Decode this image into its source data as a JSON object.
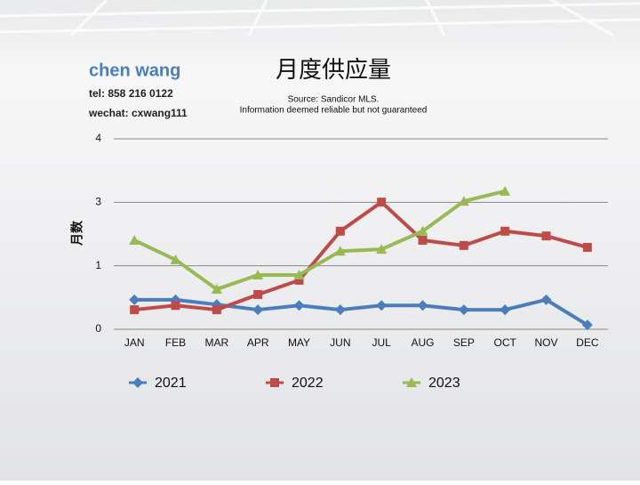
{
  "header": {
    "name": "chen wang",
    "tel": "tel: 858 216 0122",
    "wechat": "wechat: cxwang111"
  },
  "chart_data": {
    "type": "line",
    "title": "月度供应量",
    "subtitle": [
      "Source: Sandicor MLS.",
      "Information deemed reliable but not guaranteed"
    ],
    "ylabel": "月数",
    "categories": [
      "JAN",
      "FEB",
      "MAR",
      "APR",
      "MAY",
      "JUN",
      "JUL",
      "AUG",
      "SEP",
      "OCT",
      "NOV",
      "DEC"
    ],
    "series": [
      {
        "name": "2021",
        "color": "#4a7ebb",
        "marker": "diamond",
        "values": [
          0.62,
          0.62,
          0.52,
          0.41,
          0.5,
          0.41,
          0.5,
          0.5,
          0.41,
          0.41,
          0.62,
          0.09
        ]
      },
      {
        "name": "2022",
        "color": "#be4b48",
        "marker": "square",
        "values": [
          0.41,
          0.5,
          0.41,
          0.73,
          1.03,
          2.06,
          2.67,
          1.87,
          1.76,
          2.06,
          1.96,
          1.72
        ]
      },
      {
        "name": "2023",
        "color": "#98b954",
        "marker": "triangle",
        "values": [
          1.87,
          1.46,
          0.84,
          1.14,
          1.14,
          1.64,
          1.68,
          2.06,
          2.69,
          2.9,
          null,
          null
        ]
      }
    ],
    "ylim": [
      0,
      4
    ],
    "yticks": [
      0,
      {
        "value": 1.333,
        "label": "1"
      },
      {
        "value": 2.667,
        "label": "3"
      },
      4
    ],
    "grid": true,
    "legend": "bottom"
  }
}
